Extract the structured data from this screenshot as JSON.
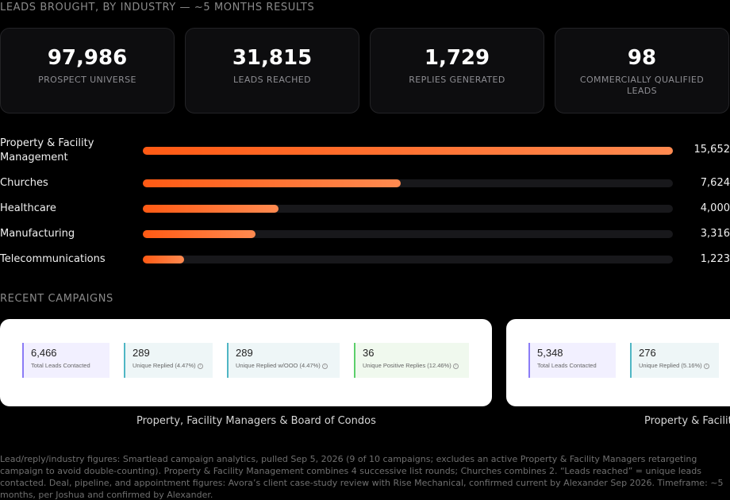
{
  "header": {
    "title": "LEADS BROUGHT, BY INDUSTRY — ~5 MONTHS RESULTS"
  },
  "stats": [
    {
      "value": "97,986",
      "label": "PROSPECT UNIVERSE"
    },
    {
      "value": "31,815",
      "label": "LEADS REACHED"
    },
    {
      "value": "1,729",
      "label": "REPLIES GENERATED"
    },
    {
      "value": "98",
      "label": "COMMERCIALLY QUALIFIED LEADS"
    }
  ],
  "industries": [
    {
      "label": "Property & Facility Management",
      "value": "15,652",
      "fraction": 1.0
    },
    {
      "label": "Churches",
      "value": "7,624",
      "fraction": 0.487
    },
    {
      "label": "Healthcare",
      "value": "4,000",
      "fraction": 0.256
    },
    {
      "label": "Manufacturing",
      "value": "3,316",
      "fraction": 0.212
    },
    {
      "label": "Telecommunications",
      "value": "1,223",
      "fraction": 0.078
    }
  ],
  "campaigns_section": {
    "title": "RECENT CAMPAIGNS"
  },
  "campaigns": [
    {
      "caption": "Property, Facility Managers & Board of Condos",
      "metrics": [
        {
          "value": "6,466",
          "label": "Total Leads Contacted"
        },
        {
          "value": "289",
          "label": "Unique Replied (4.47%)"
        },
        {
          "value": "289",
          "label": "Unique Replied w/OOO (4.47%)"
        },
        {
          "value": "36",
          "label": "Unique Positive Replies (12.46%)"
        }
      ]
    },
    {
      "caption": "Property & Facility",
      "metrics": [
        {
          "value": "5,348",
          "label": "Total Leads Contacted"
        },
        {
          "value": "276",
          "label": "Unique Replied (5.16%)"
        }
      ]
    }
  ],
  "footnote": "Lead/reply/industry figures: Smartlead campaign analytics, pulled Sep 5, 2026 (9 of 10 campaigns; excludes an active Property & Facility Managers retargeting campaign to avoid double-counting). Property & Facility Management combines 4 successive list rounds; Churches combines 2. “Leads reached” = unique leads contacted. Deal, pipeline, and appointment figures: Avora’s client case-study review with Rise Mechanical, confirmed current by Alexander Sep 2026. Timeframe: ~5 months, per Joshua and confirmed by Alexander.",
  "colors": {
    "accent": "#ff5a14",
    "card_bg": "#0d0d0f",
    "track": "#18181b"
  }
}
